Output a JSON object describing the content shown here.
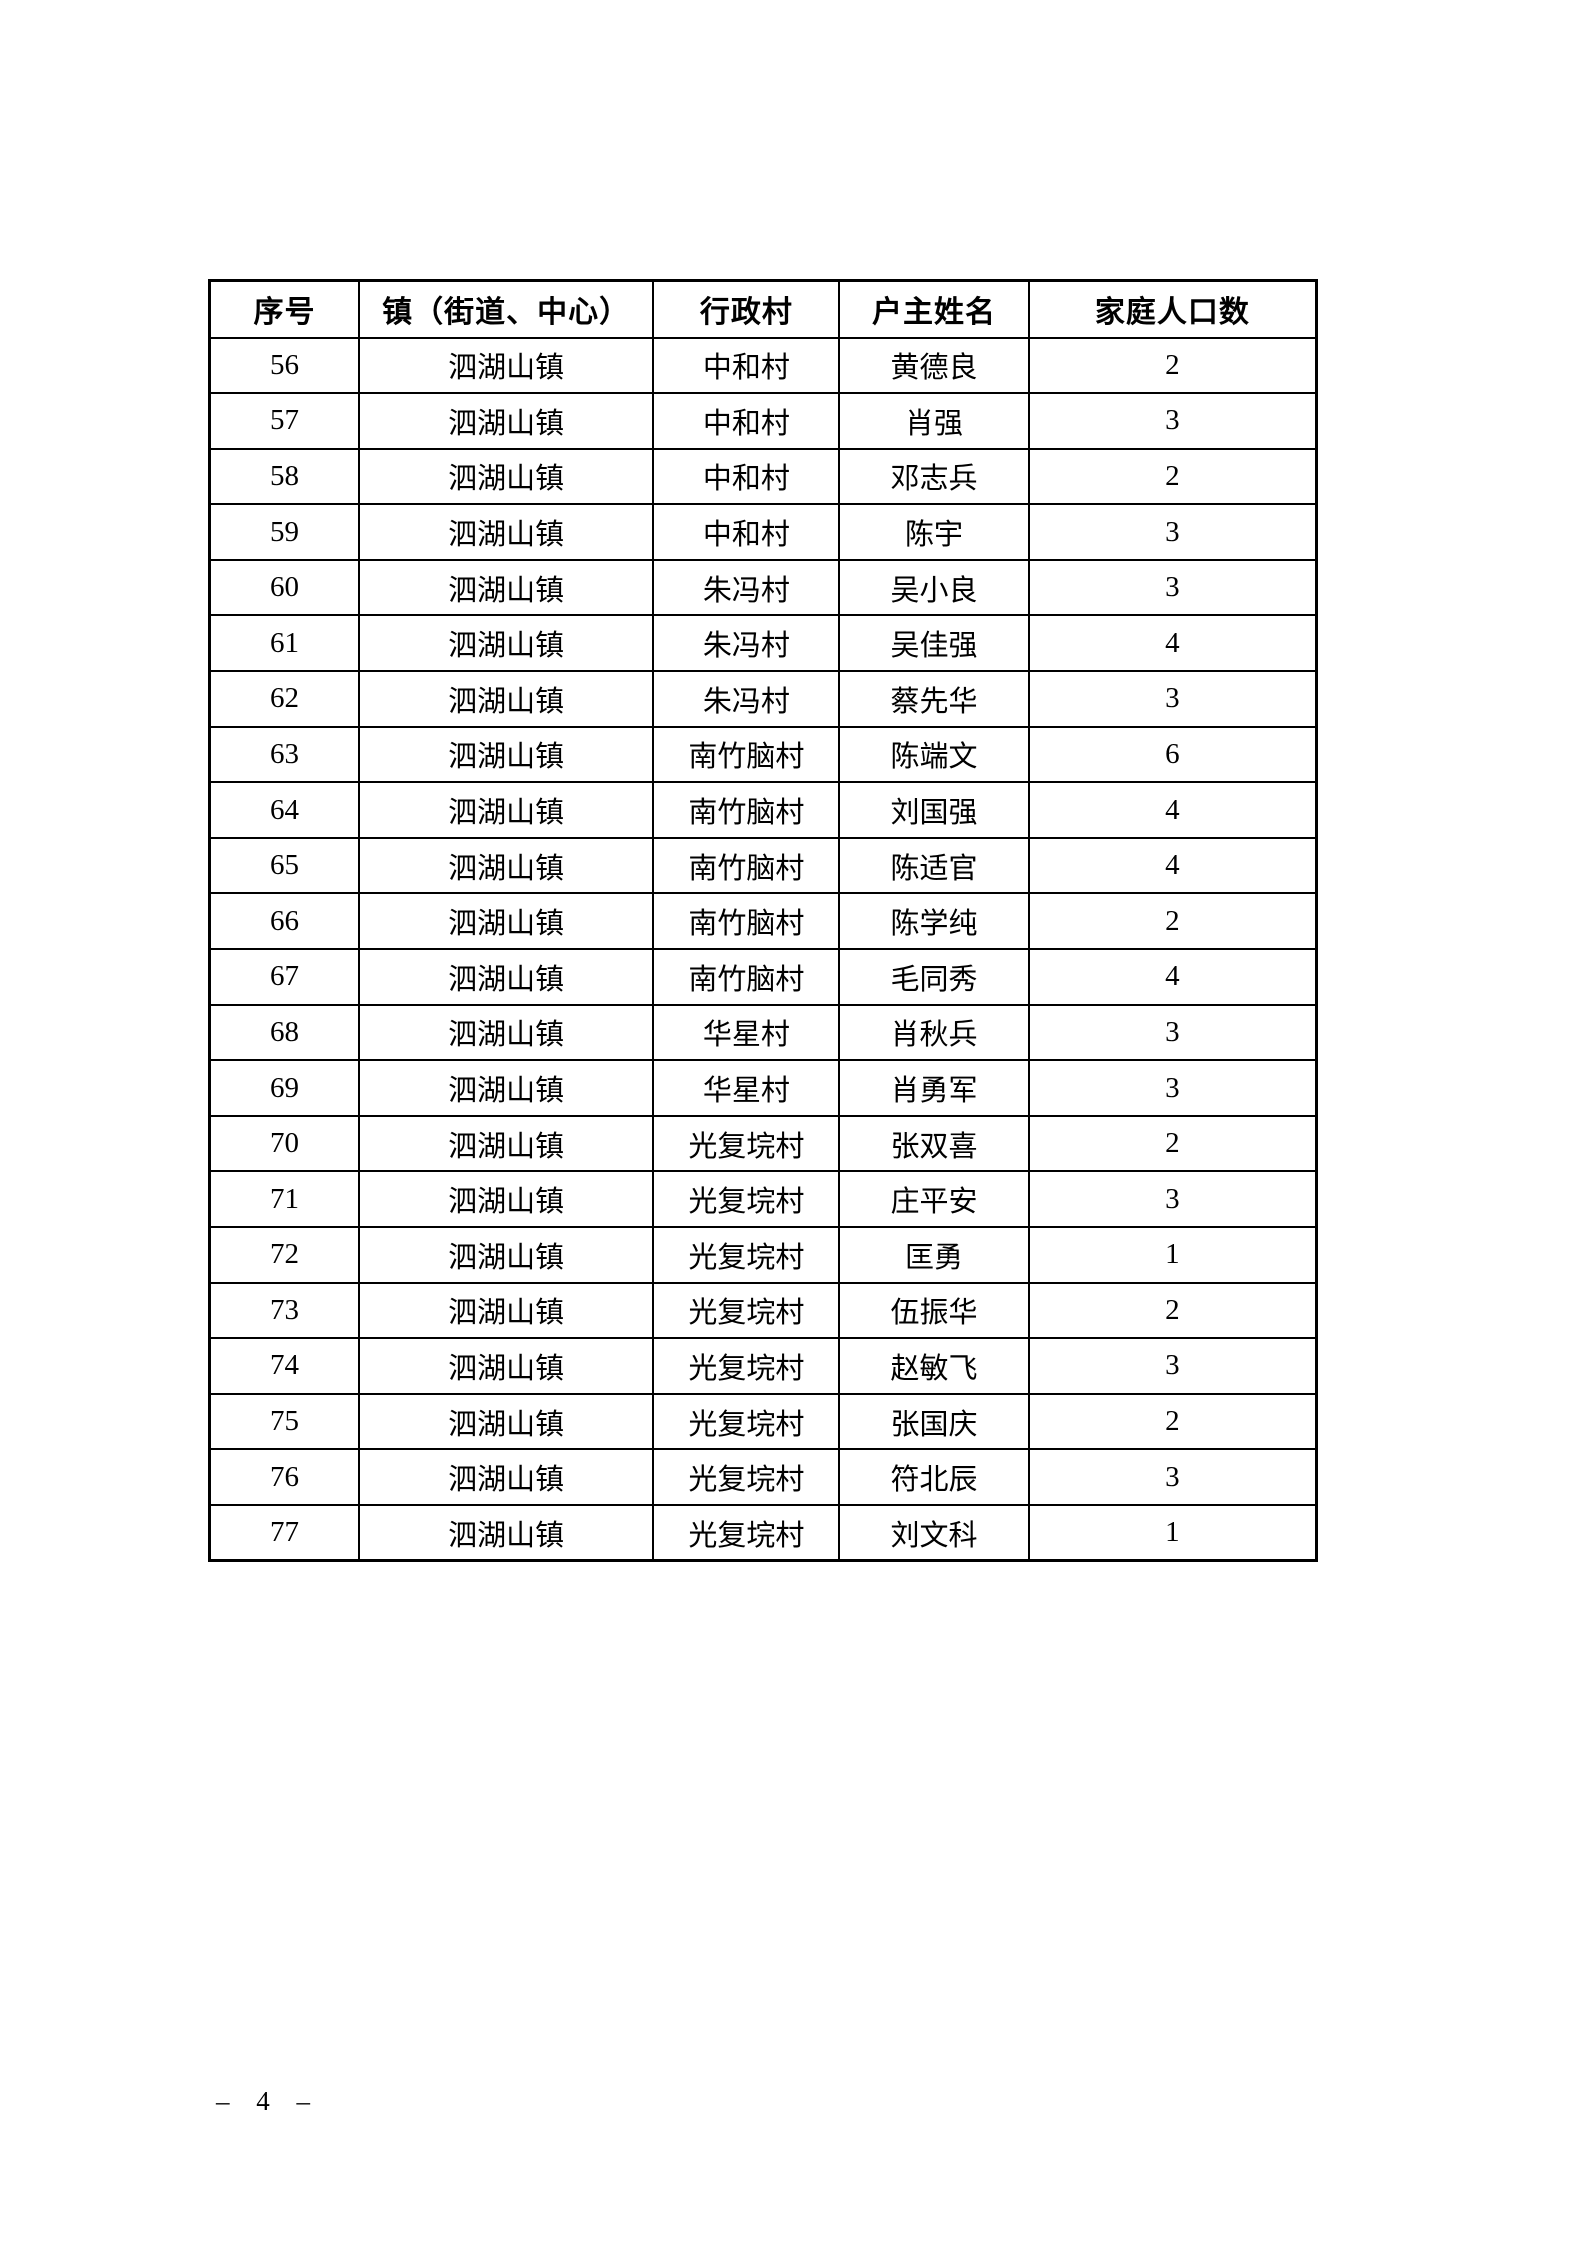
{
  "document": {
    "page_number": "– 4 –"
  },
  "table": {
    "headers": [
      "序号",
      "镇（街道、中心）",
      "行政村",
      "户主姓名",
      "家庭人口数"
    ],
    "rows": [
      [
        "56",
        "泗湖山镇",
        "中和村",
        "黄德良",
        "2"
      ],
      [
        "57",
        "泗湖山镇",
        "中和村",
        "肖强",
        "3"
      ],
      [
        "58",
        "泗湖山镇",
        "中和村",
        "邓志兵",
        "2"
      ],
      [
        "59",
        "泗湖山镇",
        "中和村",
        "陈宇",
        "3"
      ],
      [
        "60",
        "泗湖山镇",
        "朱冯村",
        "吴小良",
        "3"
      ],
      [
        "61",
        "泗湖山镇",
        "朱冯村",
        "吴佳强",
        "4"
      ],
      [
        "62",
        "泗湖山镇",
        "朱冯村",
        "蔡先华",
        "3"
      ],
      [
        "63",
        "泗湖山镇",
        "南竹脑村",
        "陈端文",
        "6"
      ],
      [
        "64",
        "泗湖山镇",
        "南竹脑村",
        "刘国强",
        "4"
      ],
      [
        "65",
        "泗湖山镇",
        "南竹脑村",
        "陈适官",
        "4"
      ],
      [
        "66",
        "泗湖山镇",
        "南竹脑村",
        "陈学纯",
        "2"
      ],
      [
        "67",
        "泗湖山镇",
        "南竹脑村",
        "毛同秀",
        "4"
      ],
      [
        "68",
        "泗湖山镇",
        "华星村",
        "肖秋兵",
        "3"
      ],
      [
        "69",
        "泗湖山镇",
        "华星村",
        "肖勇军",
        "3"
      ],
      [
        "70",
        "泗湖山镇",
        "光复垸村",
        "张双喜",
        "2"
      ],
      [
        "71",
        "泗湖山镇",
        "光复垸村",
        "庄平安",
        "3"
      ],
      [
        "72",
        "泗湖山镇",
        "光复垸村",
        "匡勇",
        "1"
      ],
      [
        "73",
        "泗湖山镇",
        "光复垸村",
        "伍振华",
        "2"
      ],
      [
        "74",
        "泗湖山镇",
        "光复垸村",
        "赵敏飞",
        "3"
      ],
      [
        "75",
        "泗湖山镇",
        "光复垸村",
        "张国庆",
        "2"
      ],
      [
        "76",
        "泗湖山镇",
        "光复垸村",
        "符北辰",
        "3"
      ],
      [
        "77",
        "泗湖山镇",
        "光复垸村",
        "刘文科",
        "1"
      ]
    ]
  }
}
